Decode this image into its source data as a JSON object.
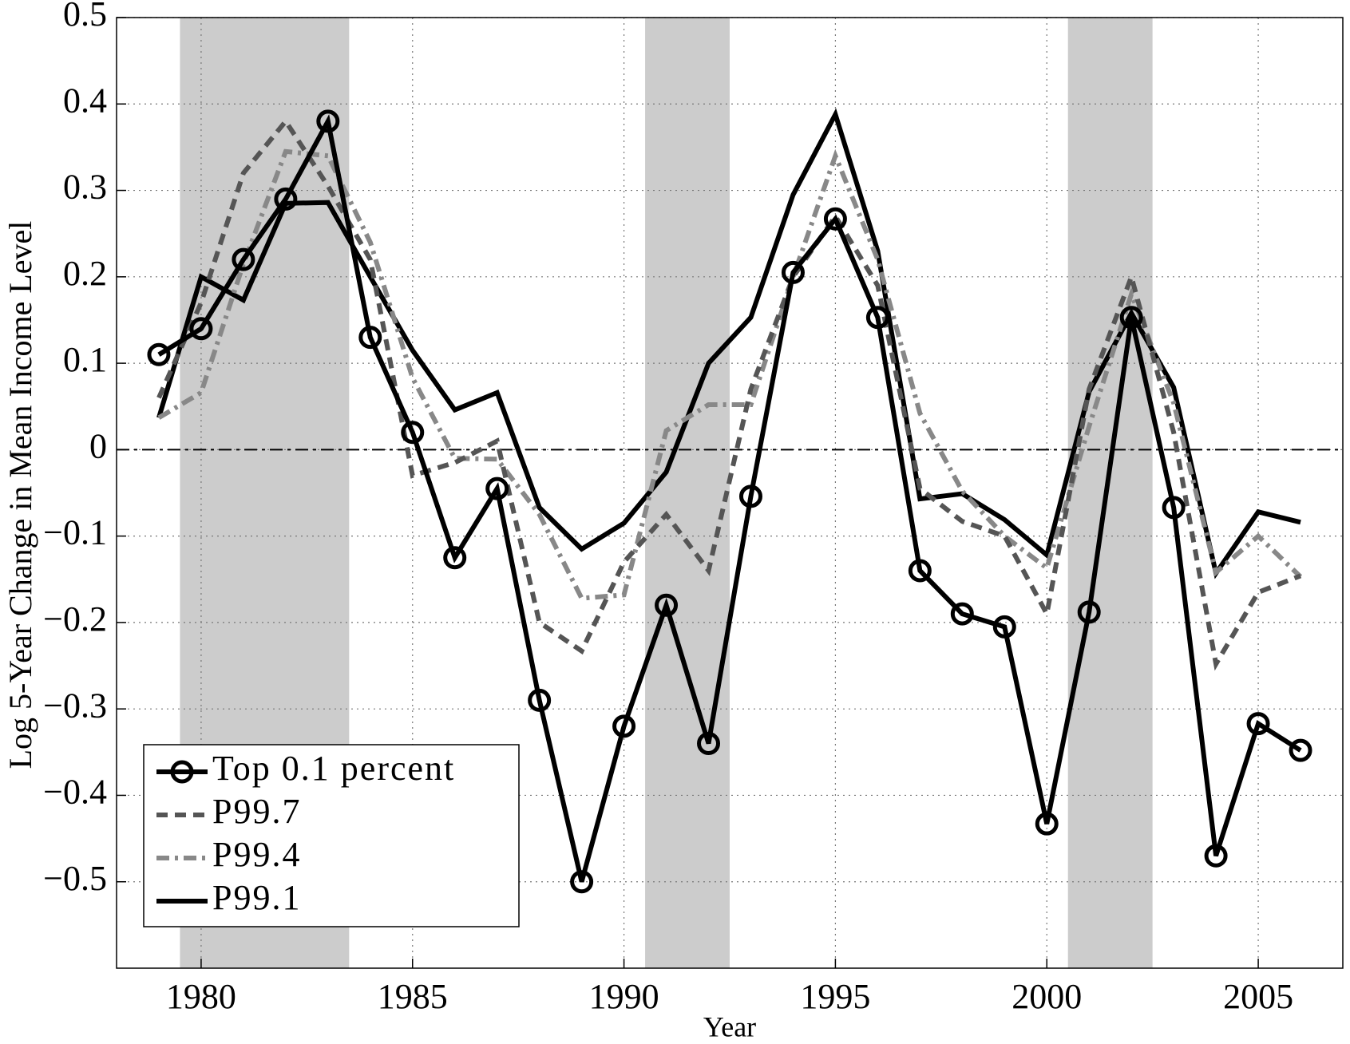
{
  "chart_data": {
    "type": "line",
    "y_label": "Log 5-Year Change in Mean Income Level",
    "x_label": "Year",
    "x": [
      1979,
      1980,
      1981,
      1982,
      1983,
      1984,
      1985,
      1986,
      1987,
      1988,
      1989,
      1990,
      1991,
      1992,
      1993,
      1994,
      1995,
      1996,
      1997,
      1998,
      1999,
      2000,
      2001,
      2002,
      2003,
      2004,
      2005,
      2006
    ],
    "series": [
      {
        "name": "Top 0.1 percent",
        "color": "#000000",
        "dash": "solid",
        "marker": "circle",
        "values": [
          0.11,
          0.14,
          0.22,
          0.29,
          0.38,
          0.13,
          0.02,
          -0.125,
          -0.045,
          -0.29,
          -0.5,
          -0.32,
          -0.18,
          -0.34,
          -0.054,
          0.205,
          0.267,
          0.153,
          -0.14,
          -0.19,
          -0.205,
          -0.433,
          -0.188,
          0.153,
          -0.067,
          -0.47,
          -0.317,
          -0.348
        ]
      },
      {
        "name": "P99.7",
        "color": "#555555",
        "dash": "dashed",
        "values": [
          0.06,
          0.17,
          0.32,
          0.38,
          0.305,
          0.22,
          -0.03,
          -0.015,
          0.01,
          -0.2,
          -0.233,
          -0.13,
          -0.075,
          -0.14,
          0.07,
          0.2,
          0.27,
          0.19,
          -0.045,
          -0.083,
          -0.1,
          -0.19,
          0.07,
          0.2,
          0.02,
          -0.248,
          -0.165,
          -0.146
        ]
      },
      {
        "name": "P99.4",
        "color": "#888888",
        "dash": "dashdot",
        "values": [
          0.037,
          0.066,
          0.215,
          0.345,
          0.34,
          0.24,
          0.083,
          -0.01,
          -0.011,
          -0.075,
          -0.172,
          -0.168,
          0.022,
          0.052,
          0.052,
          0.2,
          0.34,
          0.22,
          0.042,
          -0.048,
          -0.1,
          -0.137,
          0.027,
          0.18,
          0.054,
          -0.142,
          -0.1,
          -0.147
        ]
      },
      {
        "name": "P99.1",
        "color": "#000000",
        "dash": "solid",
        "values": [
          0.037,
          0.2,
          0.173,
          0.285,
          0.286,
          0.2,
          0.115,
          0.046,
          0.066,
          -0.067,
          -0.115,
          -0.085,
          -0.026,
          0.1,
          0.153,
          0.295,
          0.388,
          0.23,
          -0.057,
          -0.051,
          -0.081,
          -0.122,
          0.067,
          0.158,
          0.072,
          -0.143,
          -0.072,
          -0.084
        ]
      }
    ],
    "shaded_regions": [
      [
        1979.5,
        1983.5
      ],
      [
        1990.5,
        1992.5
      ],
      [
        2000.5,
        2002.5
      ]
    ],
    "xlim": [
      1978,
      2007
    ],
    "xticks": [
      1980,
      1985,
      1990,
      1995,
      2000,
      2005
    ],
    "ylim": [
      -0.6,
      0.5
    ],
    "yticks": [
      {
        "value": -0.5,
        "label": "−0.5"
      },
      {
        "value": -0.4,
        "label": "−0.4"
      },
      {
        "value": -0.3,
        "label": "−0.3"
      },
      {
        "value": -0.2,
        "label": "−0.2"
      },
      {
        "value": -0.1,
        "label": "−0.1"
      },
      0,
      0.1,
      0.2,
      0.3,
      0.4,
      0.5
    ],
    "grid": true,
    "zero_line": true,
    "legend": "lower-left"
  }
}
